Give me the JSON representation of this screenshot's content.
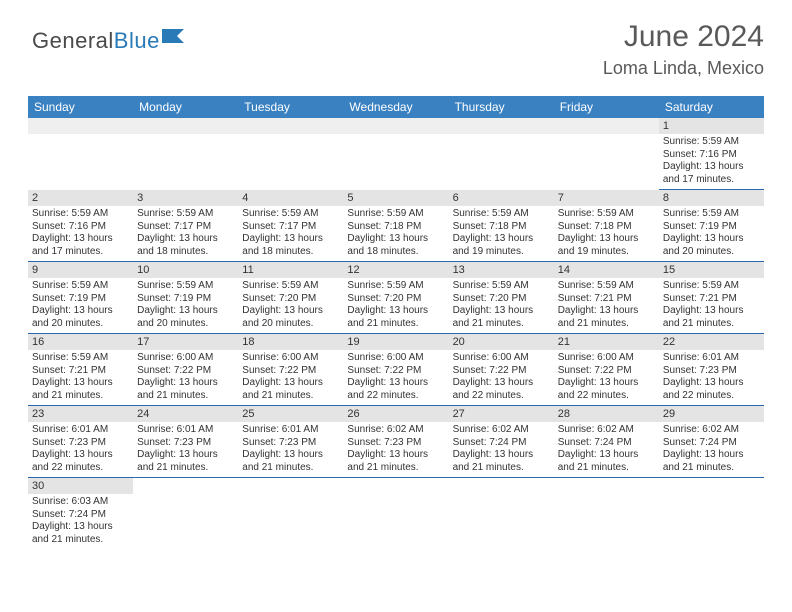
{
  "logo": {
    "part1": "General",
    "part2": "Blue"
  },
  "title": "June 2024",
  "location": "Loma Linda, Mexico",
  "colors": {
    "header_bg": "#3a81c2",
    "header_fg": "#ffffff",
    "daynum_bg": "#e4e4e4",
    "row_border": "#2a6aa8",
    "title_color": "#595959",
    "logo_gray": "#4a4a4a",
    "logo_blue": "#2a7ab8"
  },
  "fonts": {
    "family": "Arial",
    "title_size": 30,
    "location_size": 18,
    "header_size": 12,
    "daynum_size": 11,
    "body_size": 10
  },
  "weekdays": [
    "Sunday",
    "Monday",
    "Tuesday",
    "Wednesday",
    "Thursday",
    "Friday",
    "Saturday"
  ],
  "weeks": [
    [
      null,
      null,
      null,
      null,
      null,
      null,
      {
        "n": "1",
        "sr": "5:59 AM",
        "ss": "7:16 PM",
        "dl": "13 hours and 17 minutes."
      }
    ],
    [
      {
        "n": "2",
        "sr": "5:59 AM",
        "ss": "7:16 PM",
        "dl": "13 hours and 17 minutes."
      },
      {
        "n": "3",
        "sr": "5:59 AM",
        "ss": "7:17 PM",
        "dl": "13 hours and 18 minutes."
      },
      {
        "n": "4",
        "sr": "5:59 AM",
        "ss": "7:17 PM",
        "dl": "13 hours and 18 minutes."
      },
      {
        "n": "5",
        "sr": "5:59 AM",
        "ss": "7:18 PM",
        "dl": "13 hours and 18 minutes."
      },
      {
        "n": "6",
        "sr": "5:59 AM",
        "ss": "7:18 PM",
        "dl": "13 hours and 19 minutes."
      },
      {
        "n": "7",
        "sr": "5:59 AM",
        "ss": "7:18 PM",
        "dl": "13 hours and 19 minutes."
      },
      {
        "n": "8",
        "sr": "5:59 AM",
        "ss": "7:19 PM",
        "dl": "13 hours and 20 minutes."
      }
    ],
    [
      {
        "n": "9",
        "sr": "5:59 AM",
        "ss": "7:19 PM",
        "dl": "13 hours and 20 minutes."
      },
      {
        "n": "10",
        "sr": "5:59 AM",
        "ss": "7:19 PM",
        "dl": "13 hours and 20 minutes."
      },
      {
        "n": "11",
        "sr": "5:59 AM",
        "ss": "7:20 PM",
        "dl": "13 hours and 20 minutes."
      },
      {
        "n": "12",
        "sr": "5:59 AM",
        "ss": "7:20 PM",
        "dl": "13 hours and 21 minutes."
      },
      {
        "n": "13",
        "sr": "5:59 AM",
        "ss": "7:20 PM",
        "dl": "13 hours and 21 minutes."
      },
      {
        "n": "14",
        "sr": "5:59 AM",
        "ss": "7:21 PM",
        "dl": "13 hours and 21 minutes."
      },
      {
        "n": "15",
        "sr": "5:59 AM",
        "ss": "7:21 PM",
        "dl": "13 hours and 21 minutes."
      }
    ],
    [
      {
        "n": "16",
        "sr": "5:59 AM",
        "ss": "7:21 PM",
        "dl": "13 hours and 21 minutes."
      },
      {
        "n": "17",
        "sr": "6:00 AM",
        "ss": "7:22 PM",
        "dl": "13 hours and 21 minutes."
      },
      {
        "n": "18",
        "sr": "6:00 AM",
        "ss": "7:22 PM",
        "dl": "13 hours and 21 minutes."
      },
      {
        "n": "19",
        "sr": "6:00 AM",
        "ss": "7:22 PM",
        "dl": "13 hours and 22 minutes."
      },
      {
        "n": "20",
        "sr": "6:00 AM",
        "ss": "7:22 PM",
        "dl": "13 hours and 22 minutes."
      },
      {
        "n": "21",
        "sr": "6:00 AM",
        "ss": "7:22 PM",
        "dl": "13 hours and 22 minutes."
      },
      {
        "n": "22",
        "sr": "6:01 AM",
        "ss": "7:23 PM",
        "dl": "13 hours and 22 minutes."
      }
    ],
    [
      {
        "n": "23",
        "sr": "6:01 AM",
        "ss": "7:23 PM",
        "dl": "13 hours and 22 minutes."
      },
      {
        "n": "24",
        "sr": "6:01 AM",
        "ss": "7:23 PM",
        "dl": "13 hours and 21 minutes."
      },
      {
        "n": "25",
        "sr": "6:01 AM",
        "ss": "7:23 PM",
        "dl": "13 hours and 21 minutes."
      },
      {
        "n": "26",
        "sr": "6:02 AM",
        "ss": "7:23 PM",
        "dl": "13 hours and 21 minutes."
      },
      {
        "n": "27",
        "sr": "6:02 AM",
        "ss": "7:24 PM",
        "dl": "13 hours and 21 minutes."
      },
      {
        "n": "28",
        "sr": "6:02 AM",
        "ss": "7:24 PM",
        "dl": "13 hours and 21 minutes."
      },
      {
        "n": "29",
        "sr": "6:02 AM",
        "ss": "7:24 PM",
        "dl": "13 hours and 21 minutes."
      }
    ],
    [
      {
        "n": "30",
        "sr": "6:03 AM",
        "ss": "7:24 PM",
        "dl": "13 hours and 21 minutes."
      },
      null,
      null,
      null,
      null,
      null,
      null
    ]
  ],
  "labels": {
    "sunrise": "Sunrise: ",
    "sunset": "Sunset: ",
    "daylight": "Daylight: "
  }
}
